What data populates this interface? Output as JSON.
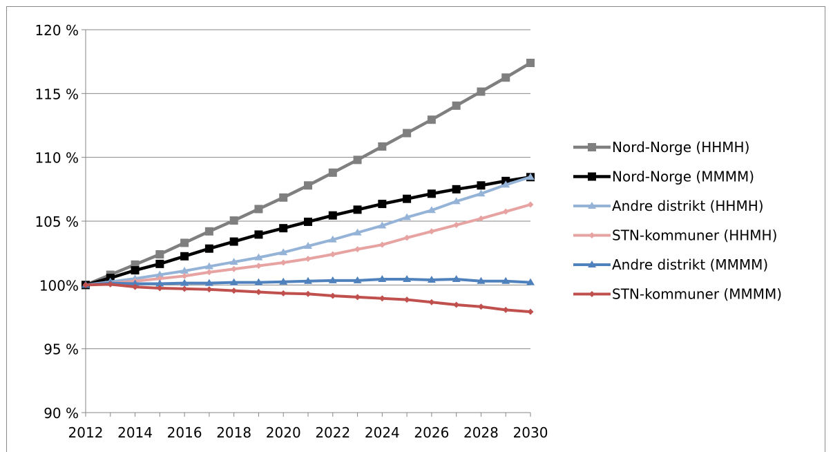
{
  "chart_data": {
    "type": "line",
    "title": "",
    "xlabel": "",
    "ylabel": "",
    "x": [
      2012,
      2013,
      2014,
      2015,
      2016,
      2017,
      2018,
      2019,
      2020,
      2021,
      2022,
      2023,
      2024,
      2025,
      2026,
      2027,
      2028,
      2029,
      2030
    ],
    "x_ticks": [
      "2012",
      "2014",
      "2016",
      "2018",
      "2020",
      "2022",
      "2024",
      "2026",
      "2028",
      "2030"
    ],
    "y_ticks": [
      "90 %",
      "95 %",
      "100%",
      "105 %",
      "110 %",
      "115 %",
      "120 %"
    ],
    "y_tick_values": [
      90,
      95,
      100,
      105,
      110,
      115,
      120
    ],
    "ylim": [
      90,
      120
    ],
    "xlim": [
      2012,
      2030
    ],
    "grid": "horizontal",
    "legend_position": "right",
    "series": [
      {
        "name": "Nord-Norge (HHMH)",
        "color": "#7f7f7f",
        "marker": "square",
        "values": [
          100.0,
          100.8,
          101.6,
          102.4,
          103.3,
          104.2,
          105.05,
          105.95,
          106.85,
          107.8,
          108.8,
          109.8,
          110.85,
          111.9,
          112.95,
          114.05,
          115.15,
          116.25,
          117.4
        ]
      },
      {
        "name": "Nord-Norge (MMMM)",
        "color": "#000000",
        "marker": "square",
        "values": [
          100.0,
          100.55,
          101.15,
          101.65,
          102.25,
          102.85,
          103.4,
          103.95,
          104.45,
          104.95,
          105.45,
          105.9,
          106.35,
          106.75,
          107.15,
          107.5,
          107.8,
          108.15,
          108.45
        ]
      },
      {
        "name": "Andre distrikt (HHMH)",
        "color": "#95b3d7",
        "marker": "triangle",
        "values": [
          100.0,
          100.25,
          100.5,
          100.8,
          101.1,
          101.45,
          101.8,
          102.15,
          102.55,
          103.05,
          103.55,
          104.1,
          104.65,
          105.3,
          105.85,
          106.55,
          107.15,
          107.85,
          108.45
        ]
      },
      {
        "name": "STN-kommuner (HHMH)",
        "color": "#e6a3a1",
        "marker": "diamond",
        "values": [
          100.0,
          100.15,
          100.3,
          100.5,
          100.7,
          101.0,
          101.25,
          101.5,
          101.75,
          102.05,
          102.4,
          102.8,
          103.15,
          103.7,
          104.2,
          104.7,
          105.2,
          105.75,
          106.3
        ]
      },
      {
        "name": "Andre distrikt (MMMM)",
        "color": "#4f81bd",
        "marker": "triangle",
        "values": [
          100.0,
          100.15,
          100.1,
          100.1,
          100.15,
          100.15,
          100.2,
          100.2,
          100.25,
          100.3,
          100.35,
          100.35,
          100.45,
          100.45,
          100.4,
          100.45,
          100.3,
          100.3,
          100.2
        ]
      },
      {
        "name": "STN-kommuner (MMMM)",
        "color": "#c0504d",
        "marker": "diamond",
        "values": [
          100.0,
          100.05,
          99.85,
          99.75,
          99.7,
          99.65,
          99.55,
          99.45,
          99.35,
          99.3,
          99.15,
          99.05,
          98.95,
          98.85,
          98.65,
          98.45,
          98.3,
          98.05,
          97.9
        ]
      }
    ]
  }
}
